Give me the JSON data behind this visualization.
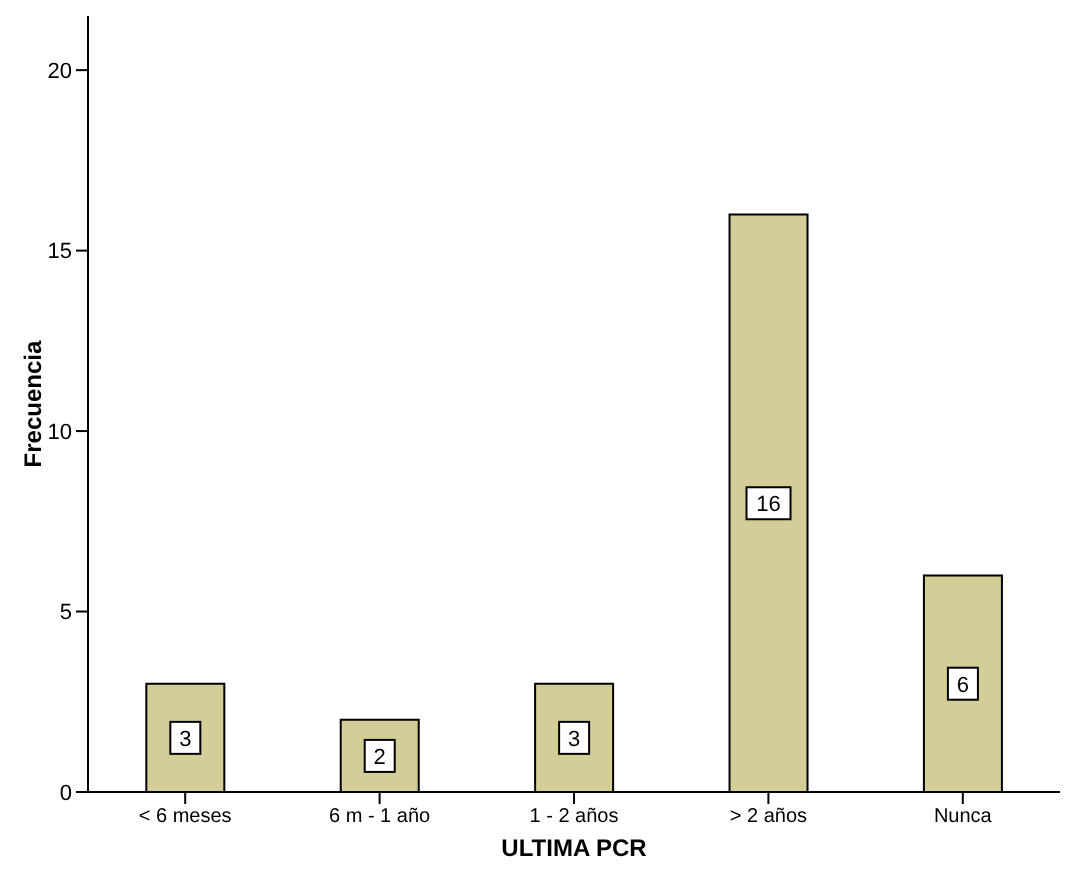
{
  "chart_data": {
    "type": "bar",
    "xlabel": "ULTIMA PCR",
    "ylabel": "Frecuencia",
    "categories": [
      "< 6 meses",
      "6 m - 1 año",
      "1 - 2 años",
      "> 2 años",
      "Nunca"
    ],
    "values": [
      3,
      2,
      3,
      16,
      6
    ],
    "color": "#d3ce97",
    "ylim": [
      0,
      21.5
    ],
    "yticks": [
      0,
      5,
      10,
      15,
      20
    ],
    "grid": false,
    "data_labels": true
  }
}
